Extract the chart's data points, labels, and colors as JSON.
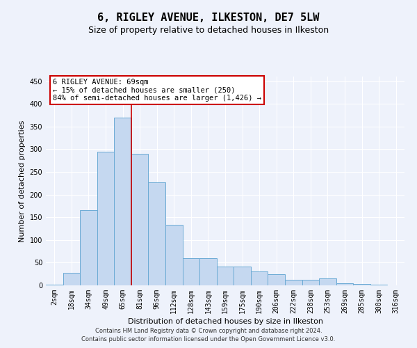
{
  "title1": "6, RIGLEY AVENUE, ILKESTON, DE7 5LW",
  "title2": "Size of property relative to detached houses in Ilkeston",
  "xlabel": "Distribution of detached houses by size in Ilkeston",
  "ylabel": "Number of detached properties",
  "categories": [
    "2sqm",
    "18sqm",
    "34sqm",
    "49sqm",
    "65sqm",
    "81sqm",
    "96sqm",
    "112sqm",
    "128sqm",
    "143sqm",
    "159sqm",
    "175sqm",
    "190sqm",
    "206sqm",
    "222sqm",
    "238sqm",
    "253sqm",
    "269sqm",
    "285sqm",
    "300sqm",
    "316sqm"
  ],
  "values": [
    2,
    28,
    165,
    295,
    370,
    290,
    227,
    133,
    60,
    60,
    42,
    42,
    30,
    25,
    12,
    12,
    15,
    5,
    3,
    2,
    0
  ],
  "bar_color": "#c5d8f0",
  "bar_edge_color": "#6aaad4",
  "marker_label": "6 RIGLEY AVENUE: 69sqm",
  "annotation_line1": "← 15% of detached houses are smaller (250)",
  "annotation_line2": "84% of semi-detached houses are larger (1,426) →",
  "annotation_box_color": "#ffffff",
  "annotation_box_edge": "#cc0000",
  "vline_color": "#cc0000",
  "vline_x": 4.5,
  "footer1": "Contains HM Land Registry data © Crown copyright and database right 2024.",
  "footer2": "Contains public sector information licensed under the Open Government Licence v3.0.",
  "ylim": [
    0,
    460
  ],
  "yticks": [
    0,
    50,
    100,
    150,
    200,
    250,
    300,
    350,
    400,
    450
  ],
  "background_color": "#eef2fb",
  "grid_color": "#ffffff",
  "title1_fontsize": 11,
  "title2_fontsize": 9,
  "xlabel_fontsize": 8,
  "ylabel_fontsize": 8,
  "tick_fontsize": 7,
  "footer_fontsize": 6,
  "ann_fontsize": 7.5
}
